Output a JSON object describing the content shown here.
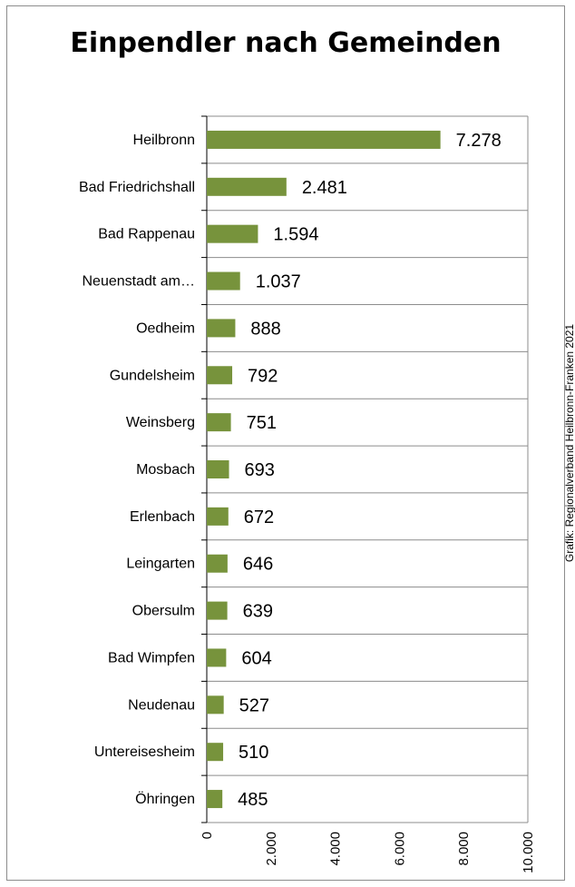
{
  "credit": "Grafik: Regionalverband Heilbronn-Franken 2021",
  "colors": {
    "bar": "#77933c",
    "grid": "#8c8c8c",
    "axis": "#000000"
  },
  "chart_data": {
    "type": "bar",
    "orientation": "horizontal",
    "title": "Einpendler nach Gemeinden",
    "categories": [
      "Heilbronn",
      "Bad Friedrichshall",
      "Bad Rappenau",
      "Neuenstadt am…",
      "Oedheim",
      "Gundelsheim",
      "Weinsberg",
      "Mosbach",
      "Erlenbach",
      "Leingarten",
      "Obersulm",
      "Bad Wimpfen",
      "Neudenau",
      "Untereisesheim",
      "Öhringen"
    ],
    "values": [
      7278,
      2481,
      1594,
      1037,
      888,
      792,
      751,
      693,
      672,
      646,
      639,
      604,
      527,
      510,
      485
    ],
    "value_labels": [
      "7.278",
      "2.481",
      "1.594",
      "1.037",
      "888",
      "792",
      "751",
      "693",
      "672",
      "646",
      "639",
      "604",
      "527",
      "510",
      "485"
    ],
    "xlim": [
      0,
      10000
    ],
    "xticks": [
      0,
      2000,
      4000,
      6000,
      8000,
      10000
    ],
    "xtick_labels": [
      "0",
      "2.000",
      "4.000",
      "6.000",
      "8.000",
      "10.000"
    ],
    "xlabel": "",
    "ylabel": "",
    "grid": true,
    "legend": "none"
  }
}
